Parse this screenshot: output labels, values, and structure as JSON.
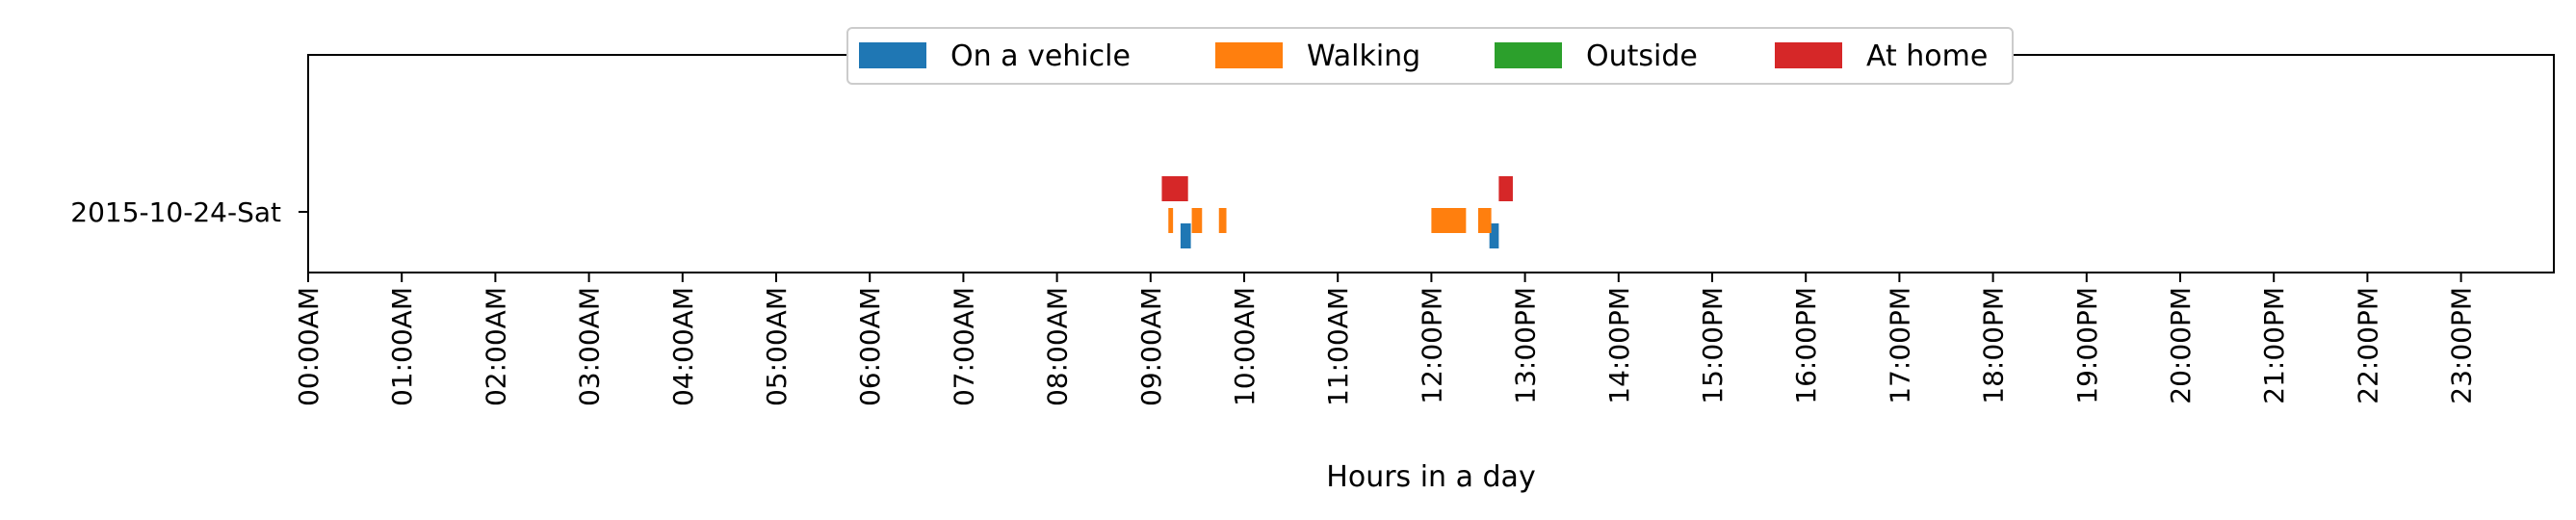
{
  "chart_data": {
    "type": "bar",
    "orientation": "horizontal-timeline",
    "title": "",
    "xlabel": "Hours in a day",
    "ylabel": "",
    "xlim_hours": [
      0,
      24
    ],
    "grid": false,
    "legend_position": "top-center",
    "x_tick_labels": [
      "00:00AM",
      "01:00AM",
      "02:00AM",
      "03:00AM",
      "04:00AM",
      "05:00AM",
      "06:00AM",
      "07:00AM",
      "08:00AM",
      "09:00AM",
      "10:00AM",
      "11:00AM",
      "12:00PM",
      "13:00PM",
      "14:00PM",
      "15:00PM",
      "16:00PM",
      "17:00PM",
      "18:00PM",
      "19:00PM",
      "20:00PM",
      "21:00PM",
      "22:00PM",
      "23:00PM"
    ],
    "y_categories": [
      "2015-10-24-Sat"
    ],
    "series": [
      {
        "name": "On a vehicle",
        "color": "#1f77b4",
        "intervals": [
          [
            9.32,
            9.43
          ],
          [
            12.62,
            12.72
          ]
        ]
      },
      {
        "name": "Walking",
        "color": "#ff7f0e",
        "intervals": [
          [
            9.19,
            9.24
          ],
          [
            9.44,
            9.55
          ],
          [
            9.73,
            9.81
          ],
          [
            12.0,
            12.37
          ],
          [
            12.5,
            12.64
          ]
        ]
      },
      {
        "name": "Outside",
        "color": "#2ca02c",
        "intervals": []
      },
      {
        "name": "At home",
        "color": "#d62728",
        "intervals": [
          [
            9.12,
            9.4
          ],
          [
            12.72,
            12.87
          ]
        ]
      }
    ]
  }
}
